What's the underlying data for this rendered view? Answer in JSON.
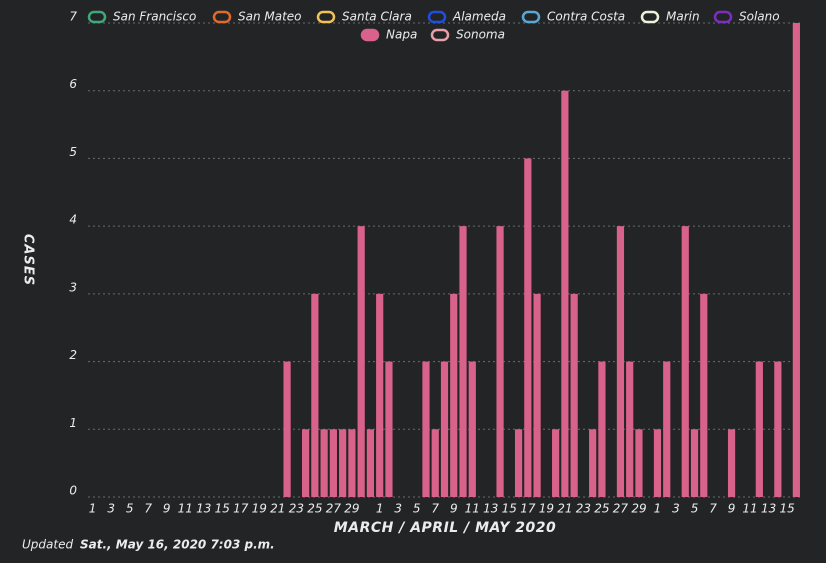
{
  "chart_data": {
    "type": "bar",
    "series": [
      {
        "name": "San Francisco",
        "color": "#3fa87a"
      },
      {
        "name": "San Mateo",
        "color": "#e06a2c"
      },
      {
        "name": "Santa Clara",
        "color": "#f3c15a"
      },
      {
        "name": "Alameda",
        "color": "#1f4fe0"
      },
      {
        "name": "Contra Costa",
        "color": "#5aa7d6"
      },
      {
        "name": "Marin",
        "color": "#eef0d8"
      },
      {
        "name": "Solano",
        "color": "#7a2fc0"
      },
      {
        "name": "Napa",
        "color": "#d9628a",
        "values": [
          0,
          0,
          0,
          0,
          0,
          0,
          0,
          0,
          0,
          0,
          0,
          0,
          0,
          0,
          0,
          0,
          0,
          0,
          0,
          0,
          0,
          2,
          0,
          1,
          3,
          1,
          1,
          1,
          1,
          4,
          1,
          3,
          2,
          0,
          0,
          0,
          2,
          1,
          2,
          3,
          4,
          2,
          0,
          0,
          4,
          0,
          1,
          5,
          3,
          0,
          1,
          6,
          3,
          0,
          1,
          2,
          0,
          4,
          2,
          1,
          0,
          1,
          2,
          0,
          4,
          1,
          3,
          0,
          0,
          1,
          0,
          0,
          2,
          0,
          2,
          0,
          7
        ]
      },
      {
        "name": "Sonoma",
        "color": "#e8a0a8"
      }
    ],
    "categories": [
      "1",
      null,
      "3",
      null,
      "5",
      null,
      "7",
      null,
      "9",
      null,
      "11",
      null,
      "13",
      null,
      "15",
      null,
      "17",
      null,
      "19",
      null,
      "21",
      null,
      "23",
      null,
      "25",
      null,
      "27",
      null,
      "29",
      null,
      null,
      "1",
      null,
      "3",
      null,
      "5",
      null,
      "7",
      null,
      "9",
      null,
      "11",
      null,
      "13",
      null,
      "15",
      null,
      "17",
      null,
      "19",
      null,
      "21",
      null,
      "23",
      null,
      "25",
      null,
      "27",
      null,
      "29",
      null,
      "1",
      null,
      "3",
      null,
      "5",
      null,
      "7",
      null,
      "9",
      null,
      "11",
      null,
      "13",
      null,
      "15",
      null
    ],
    "ylim": [
      0,
      7
    ],
    "yticks": [
      0,
      1,
      2,
      3,
      4,
      5,
      6,
      7
    ],
    "grid": true,
    "y_label": "CASES",
    "x_label": "MARCH / APRIL / MAY 2020",
    "footer_prefix": "Updated",
    "footer_date": "Sat., May 16, 2020 7:03 p.m."
  }
}
